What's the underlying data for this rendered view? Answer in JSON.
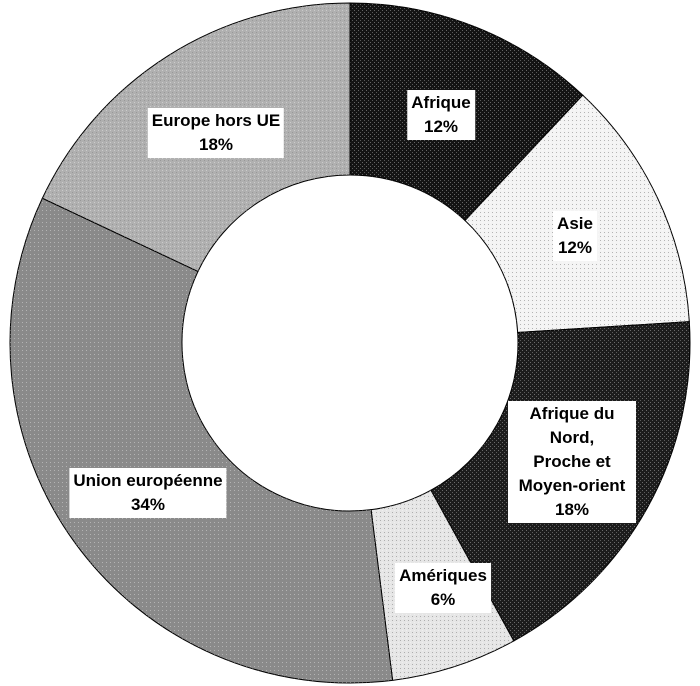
{
  "chart_data": {
    "type": "donut",
    "categories": [
      "Afrique",
      "Asie",
      "Afrique du Nord,\nProche et Moyen-orient",
      "Amériques",
      "Union européenne",
      "Europe hors UE"
    ],
    "values": [
      12,
      12,
      18,
      6,
      34,
      18
    ],
    "value_labels": [
      "12%",
      "12%",
      "18%",
      "6%",
      "34%",
      "18%"
    ],
    "colors": [
      "#141414",
      "#f4f4f4",
      "#1c1c1c",
      "#e6e6e6",
      "#8a8a8a",
      "#b0b0b0"
    ]
  }
}
